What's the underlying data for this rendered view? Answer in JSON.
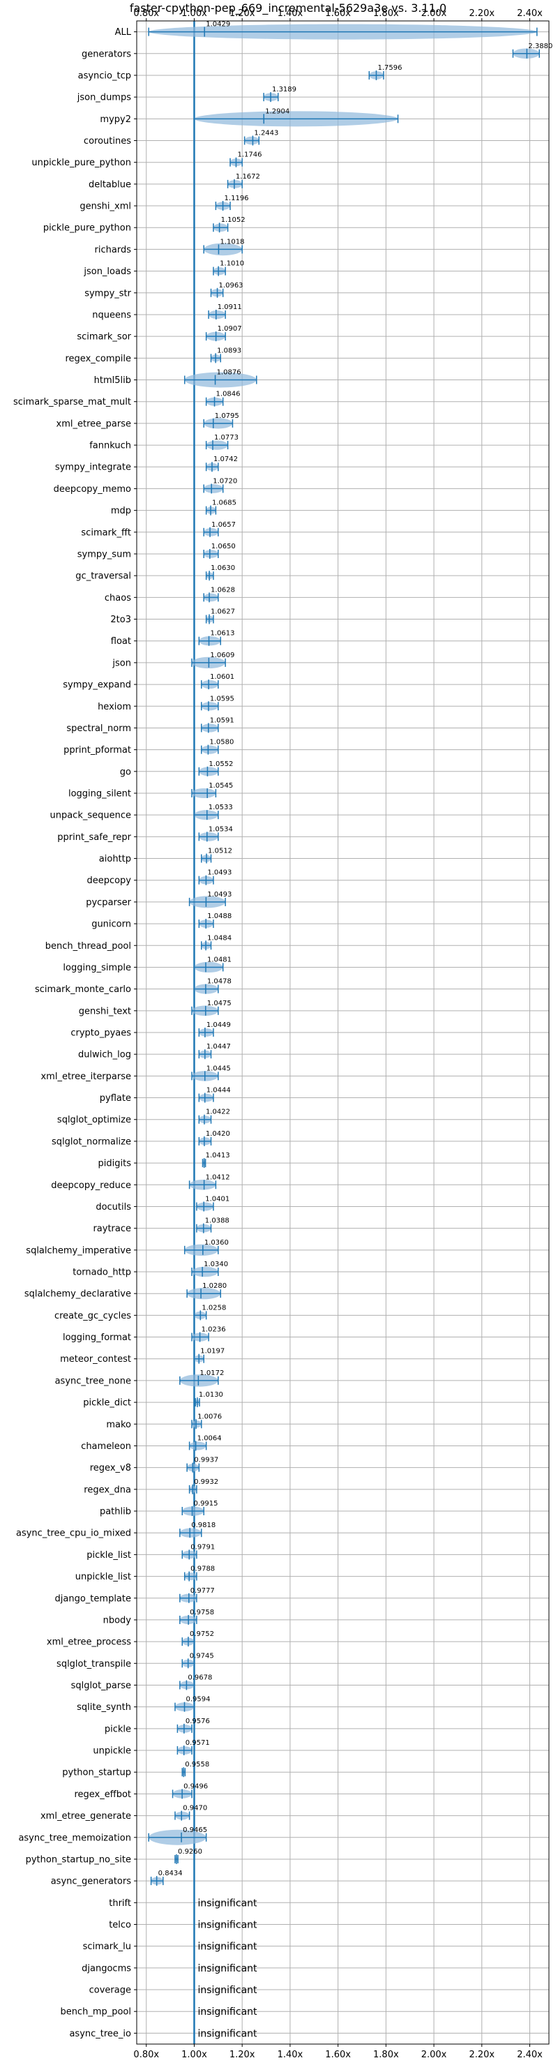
{
  "chart_data": {
    "type": "violin",
    "title": "faster-cpython-pep_669_incremental-5629a3e vs. 3.11.0",
    "xlabel": "",
    "ylabel": "",
    "xlim": [
      0.76,
      2.48
    ],
    "x_ticks": [
      0.8,
      1.0,
      1.2,
      1.4,
      1.6,
      1.8,
      2.0,
      2.2,
      2.4
    ],
    "x_tick_labels": [
      "0.80x",
      "1.00x",
      "1.20x",
      "1.40x",
      "1.60x",
      "1.80x",
      "2.00x",
      "2.20x",
      "2.40x"
    ],
    "reference_line": 1.0,
    "grid": true,
    "insignificant_label": "insignificant",
    "colors": {
      "violin": "#8fb8dc",
      "line": "#1f77b4",
      "grid": "#b0b0b0"
    },
    "benchmarks": [
      {
        "name": "ALL",
        "value": "1.0429",
        "mean": 1.0429,
        "min": 0.81,
        "max": 2.43,
        "insignificant": false
      },
      {
        "name": "generators",
        "value": "2.3880",
        "mean": 2.388,
        "min": 2.33,
        "max": 2.44,
        "insignificant": false
      },
      {
        "name": "asyncio_tcp",
        "value": "1.7596",
        "mean": 1.7596,
        "min": 1.73,
        "max": 1.79,
        "insignificant": false
      },
      {
        "name": "json_dumps",
        "value": "1.3189",
        "mean": 1.3189,
        "min": 1.29,
        "max": 1.35,
        "insignificant": false
      },
      {
        "name": "mypy2",
        "value": "1.2904",
        "mean": 1.2904,
        "min": 1.0,
        "max": 1.85,
        "insignificant": false
      },
      {
        "name": "coroutines",
        "value": "1.2443",
        "mean": 1.2443,
        "min": 1.21,
        "max": 1.27,
        "insignificant": false
      },
      {
        "name": "unpickle_pure_python",
        "value": "1.1746",
        "mean": 1.1746,
        "min": 1.15,
        "max": 1.2,
        "insignificant": false
      },
      {
        "name": "deltablue",
        "value": "1.1672",
        "mean": 1.1672,
        "min": 1.14,
        "max": 1.2,
        "insignificant": false
      },
      {
        "name": "genshi_xml",
        "value": "1.1196",
        "mean": 1.1196,
        "min": 1.09,
        "max": 1.15,
        "insignificant": false
      },
      {
        "name": "pickle_pure_python",
        "value": "1.1052",
        "mean": 1.1052,
        "min": 1.08,
        "max": 1.14,
        "insignificant": false
      },
      {
        "name": "richards",
        "value": "1.1018",
        "mean": 1.1018,
        "min": 1.04,
        "max": 1.2,
        "insignificant": false
      },
      {
        "name": "json_loads",
        "value": "1.1010",
        "mean": 1.101,
        "min": 1.08,
        "max": 1.13,
        "insignificant": false
      },
      {
        "name": "sympy_str",
        "value": "1.0963",
        "mean": 1.0963,
        "min": 1.07,
        "max": 1.12,
        "insignificant": false
      },
      {
        "name": "nqueens",
        "value": "1.0911",
        "mean": 1.0911,
        "min": 1.06,
        "max": 1.13,
        "insignificant": false
      },
      {
        "name": "scimark_sor",
        "value": "1.0907",
        "mean": 1.0907,
        "min": 1.05,
        "max": 1.13,
        "insignificant": false
      },
      {
        "name": "regex_compile",
        "value": "1.0893",
        "mean": 1.0893,
        "min": 1.07,
        "max": 1.11,
        "insignificant": false
      },
      {
        "name": "html5lib",
        "value": "1.0876",
        "mean": 1.0876,
        "min": 0.96,
        "max": 1.26,
        "insignificant": false
      },
      {
        "name": "scimark_sparse_mat_mult",
        "value": "1.0846",
        "mean": 1.0846,
        "min": 1.05,
        "max": 1.12,
        "insignificant": false
      },
      {
        "name": "xml_etree_parse",
        "value": "1.0795",
        "mean": 1.0795,
        "min": 1.04,
        "max": 1.16,
        "insignificant": false
      },
      {
        "name": "fannkuch",
        "value": "1.0773",
        "mean": 1.0773,
        "min": 1.05,
        "max": 1.14,
        "insignificant": false
      },
      {
        "name": "sympy_integrate",
        "value": "1.0742",
        "mean": 1.0742,
        "min": 1.05,
        "max": 1.1,
        "insignificant": false
      },
      {
        "name": "deepcopy_memo",
        "value": "1.0720",
        "mean": 1.072,
        "min": 1.04,
        "max": 1.12,
        "insignificant": false
      },
      {
        "name": "mdp",
        "value": "1.0685",
        "mean": 1.0685,
        "min": 1.05,
        "max": 1.09,
        "insignificant": false
      },
      {
        "name": "scimark_fft",
        "value": "1.0657",
        "mean": 1.0657,
        "min": 1.04,
        "max": 1.1,
        "insignificant": false
      },
      {
        "name": "sympy_sum",
        "value": "1.0650",
        "mean": 1.065,
        "min": 1.04,
        "max": 1.1,
        "insignificant": false
      },
      {
        "name": "gc_traversal",
        "value": "1.0630",
        "mean": 1.063,
        "min": 1.05,
        "max": 1.08,
        "insignificant": false
      },
      {
        "name": "chaos",
        "value": "1.0628",
        "mean": 1.0628,
        "min": 1.04,
        "max": 1.1,
        "insignificant": false
      },
      {
        "name": "2to3",
        "value": "1.0627",
        "mean": 1.0627,
        "min": 1.05,
        "max": 1.08,
        "insignificant": false
      },
      {
        "name": "float",
        "value": "1.0613",
        "mean": 1.0613,
        "min": 1.02,
        "max": 1.11,
        "insignificant": false
      },
      {
        "name": "json",
        "value": "1.0609",
        "mean": 1.0609,
        "min": 0.99,
        "max": 1.13,
        "insignificant": false
      },
      {
        "name": "sympy_expand",
        "value": "1.0601",
        "mean": 1.0601,
        "min": 1.03,
        "max": 1.1,
        "insignificant": false
      },
      {
        "name": "hexiom",
        "value": "1.0595",
        "mean": 1.0595,
        "min": 1.03,
        "max": 1.1,
        "insignificant": false
      },
      {
        "name": "spectral_norm",
        "value": "1.0591",
        "mean": 1.0591,
        "min": 1.03,
        "max": 1.1,
        "insignificant": false
      },
      {
        "name": "pprint_pformat",
        "value": "1.0580",
        "mean": 1.058,
        "min": 1.03,
        "max": 1.1,
        "insignificant": false
      },
      {
        "name": "go",
        "value": "1.0552",
        "mean": 1.0552,
        "min": 1.02,
        "max": 1.1,
        "insignificant": false
      },
      {
        "name": "logging_silent",
        "value": "1.0545",
        "mean": 1.0545,
        "min": 0.99,
        "max": 1.09,
        "insignificant": false
      },
      {
        "name": "unpack_sequence",
        "value": "1.0533",
        "mean": 1.0533,
        "min": 1.0,
        "max": 1.1,
        "insignificant": false
      },
      {
        "name": "pprint_safe_repr",
        "value": "1.0534",
        "mean": 1.0534,
        "min": 1.02,
        "max": 1.1,
        "insignificant": false
      },
      {
        "name": "aiohttp",
        "value": "1.0512",
        "mean": 1.0512,
        "min": 1.03,
        "max": 1.07,
        "insignificant": false
      },
      {
        "name": "deepcopy",
        "value": "1.0493",
        "mean": 1.0493,
        "min": 1.02,
        "max": 1.08,
        "insignificant": false
      },
      {
        "name": "pycparser",
        "value": "1.0493",
        "mean": 1.0493,
        "min": 0.98,
        "max": 1.13,
        "insignificant": false
      },
      {
        "name": "gunicorn",
        "value": "1.0488",
        "mean": 1.0488,
        "min": 1.02,
        "max": 1.08,
        "insignificant": false
      },
      {
        "name": "bench_thread_pool",
        "value": "1.0484",
        "mean": 1.0484,
        "min": 1.03,
        "max": 1.07,
        "insignificant": false
      },
      {
        "name": "logging_simple",
        "value": "1.0481",
        "mean": 1.0481,
        "min": 1.0,
        "max": 1.12,
        "insignificant": false
      },
      {
        "name": "scimark_monte_carlo",
        "value": "1.0478",
        "mean": 1.0478,
        "min": 1.0,
        "max": 1.1,
        "insignificant": false
      },
      {
        "name": "genshi_text",
        "value": "1.0475",
        "mean": 1.0475,
        "min": 0.99,
        "max": 1.1,
        "insignificant": false
      },
      {
        "name": "crypto_pyaes",
        "value": "1.0449",
        "mean": 1.0449,
        "min": 1.02,
        "max": 1.08,
        "insignificant": false
      },
      {
        "name": "dulwich_log",
        "value": "1.0447",
        "mean": 1.0447,
        "min": 1.02,
        "max": 1.07,
        "insignificant": false
      },
      {
        "name": "xml_etree_iterparse",
        "value": "1.0445",
        "mean": 1.0445,
        "min": 0.99,
        "max": 1.1,
        "insignificant": false
      },
      {
        "name": "pyflate",
        "value": "1.0444",
        "mean": 1.0444,
        "min": 1.02,
        "max": 1.08,
        "insignificant": false
      },
      {
        "name": "sqlglot_optimize",
        "value": "1.0422",
        "mean": 1.0422,
        "min": 1.02,
        "max": 1.07,
        "insignificant": false
      },
      {
        "name": "sqlglot_normalize",
        "value": "1.0420",
        "mean": 1.042,
        "min": 1.02,
        "max": 1.07,
        "insignificant": false
      },
      {
        "name": "pidigits",
        "value": "1.0413",
        "mean": 1.0413,
        "min": 1.035,
        "max": 1.047,
        "insignificant": false
      },
      {
        "name": "deepcopy_reduce",
        "value": "1.0412",
        "mean": 1.0412,
        "min": 0.98,
        "max": 1.09,
        "insignificant": false
      },
      {
        "name": "docutils",
        "value": "1.0401",
        "mean": 1.0401,
        "min": 1.01,
        "max": 1.08,
        "insignificant": false
      },
      {
        "name": "raytrace",
        "value": "1.0388",
        "mean": 1.0388,
        "min": 1.01,
        "max": 1.07,
        "insignificant": false
      },
      {
        "name": "sqlalchemy_imperative",
        "value": "1.0360",
        "mean": 1.036,
        "min": 0.96,
        "max": 1.1,
        "insignificant": false
      },
      {
        "name": "tornado_http",
        "value": "1.0340",
        "mean": 1.034,
        "min": 0.99,
        "max": 1.1,
        "insignificant": false
      },
      {
        "name": "sqlalchemy_declarative",
        "value": "1.0280",
        "mean": 1.028,
        "min": 0.97,
        "max": 1.11,
        "insignificant": false
      },
      {
        "name": "create_gc_cycles",
        "value": "1.0258",
        "mean": 1.0258,
        "min": 1.0,
        "max": 1.05,
        "insignificant": false
      },
      {
        "name": "logging_format",
        "value": "1.0236",
        "mean": 1.0236,
        "min": 0.99,
        "max": 1.06,
        "insignificant": false
      },
      {
        "name": "meteor_contest",
        "value": "1.0197",
        "mean": 1.0197,
        "min": 1.0,
        "max": 1.04,
        "insignificant": false
      },
      {
        "name": "async_tree_none",
        "value": "1.0172",
        "mean": 1.0172,
        "min": 0.94,
        "max": 1.1,
        "insignificant": false
      },
      {
        "name": "pickle_dict",
        "value": "1.0130",
        "mean": 1.013,
        "min": 1.005,
        "max": 1.022,
        "insignificant": false
      },
      {
        "name": "mako",
        "value": "1.0076",
        "mean": 1.0076,
        "min": 0.99,
        "max": 1.03,
        "insignificant": false
      },
      {
        "name": "chameleon",
        "value": "1.0064",
        "mean": 1.0064,
        "min": 0.98,
        "max": 1.05,
        "insignificant": false
      },
      {
        "name": "regex_v8",
        "value": "0.9937",
        "mean": 0.9937,
        "min": 0.97,
        "max": 1.02,
        "insignificant": false
      },
      {
        "name": "regex_dna",
        "value": "0.9932",
        "mean": 0.9932,
        "min": 0.98,
        "max": 1.01,
        "insignificant": false
      },
      {
        "name": "pathlib",
        "value": "0.9915",
        "mean": 0.9915,
        "min": 0.95,
        "max": 1.04,
        "insignificant": false
      },
      {
        "name": "async_tree_cpu_io_mixed",
        "value": "0.9818",
        "mean": 0.9818,
        "min": 0.94,
        "max": 1.03,
        "insignificant": false
      },
      {
        "name": "pickle_list",
        "value": "0.9791",
        "mean": 0.9791,
        "min": 0.95,
        "max": 1.01,
        "insignificant": false
      },
      {
        "name": "unpickle_list",
        "value": "0.9788",
        "mean": 0.9788,
        "min": 0.96,
        "max": 1.01,
        "insignificant": false
      },
      {
        "name": "django_template",
        "value": "0.9777",
        "mean": 0.9777,
        "min": 0.94,
        "max": 1.01,
        "insignificant": false
      },
      {
        "name": "nbody",
        "value": "0.9758",
        "mean": 0.9758,
        "min": 0.94,
        "max": 1.01,
        "insignificant": false
      },
      {
        "name": "xml_etree_process",
        "value": "0.9752",
        "mean": 0.9752,
        "min": 0.95,
        "max": 1.0,
        "insignificant": false
      },
      {
        "name": "sqlglot_transpile",
        "value": "0.9745",
        "mean": 0.9745,
        "min": 0.95,
        "max": 1.0,
        "insignificant": false
      },
      {
        "name": "sqlglot_parse",
        "value": "0.9678",
        "mean": 0.9678,
        "min": 0.94,
        "max": 1.0,
        "insignificant": false
      },
      {
        "name": "sqlite_synth",
        "value": "0.9594",
        "mean": 0.9594,
        "min": 0.92,
        "max": 1.0,
        "insignificant": false
      },
      {
        "name": "pickle",
        "value": "0.9576",
        "mean": 0.9576,
        "min": 0.93,
        "max": 0.99,
        "insignificant": false
      },
      {
        "name": "unpickle",
        "value": "0.9571",
        "mean": 0.9571,
        "min": 0.93,
        "max": 0.99,
        "insignificant": false
      },
      {
        "name": "python_startup",
        "value": "0.9558",
        "mean": 0.9558,
        "min": 0.95,
        "max": 0.962,
        "insignificant": false
      },
      {
        "name": "regex_effbot",
        "value": "0.9496",
        "mean": 0.9496,
        "min": 0.91,
        "max": 0.99,
        "insignificant": false
      },
      {
        "name": "xml_etree_generate",
        "value": "0.9470",
        "mean": 0.947,
        "min": 0.92,
        "max": 0.98,
        "insignificant": false
      },
      {
        "name": "async_tree_memoization",
        "value": "0.9465",
        "mean": 0.9465,
        "min": 0.81,
        "max": 1.05,
        "insignificant": false
      },
      {
        "name": "python_startup_no_site",
        "value": "0.9260",
        "mean": 0.926,
        "min": 0.92,
        "max": 0.932,
        "insignificant": false
      },
      {
        "name": "async_generators",
        "value": "0.8434",
        "mean": 0.8434,
        "min": 0.82,
        "max": 0.87,
        "insignificant": false
      },
      {
        "name": "thrift",
        "value": "",
        "insignificant": true
      },
      {
        "name": "telco",
        "value": "",
        "insignificant": true
      },
      {
        "name": "scimark_lu",
        "value": "",
        "insignificant": true
      },
      {
        "name": "djangocms",
        "value": "",
        "insignificant": true
      },
      {
        "name": "coverage",
        "value": "",
        "insignificant": true
      },
      {
        "name": "bench_mp_pool",
        "value": "",
        "insignificant": true
      },
      {
        "name": "async_tree_io",
        "value": "",
        "insignificant": true
      }
    ]
  }
}
